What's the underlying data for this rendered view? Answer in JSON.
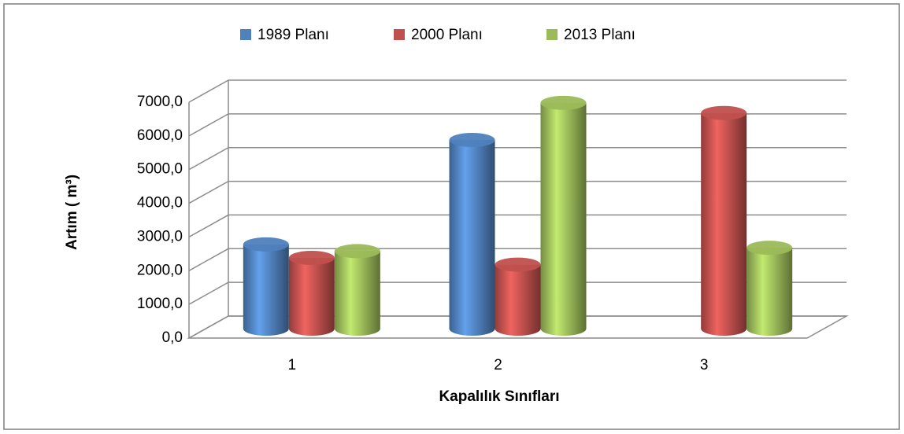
{
  "chart_data": {
    "type": "bar3d",
    "x_label": "Kapalılık Sınıfları",
    "y_label": "Artım ( m³)",
    "categories": [
      "1",
      "2",
      "3"
    ],
    "series": [
      {
        "name": "1989 Planı",
        "color": "#4f81bd",
        "values": [
          2500,
          5600,
          null
        ]
      },
      {
        "name": "2000 Planı",
        "color": "#c0504d",
        "values": [
          2100,
          1900,
          6400
        ]
      },
      {
        "name": "2013  Planı",
        "color": "#9bbb59",
        "values": [
          2300,
          6700,
          2400
        ]
      }
    ],
    "ylim": [
      0,
      7000
    ],
    "yticks": [
      {
        "value": 0,
        "label": "0,0"
      },
      {
        "value": 1000,
        "label": "1000,0"
      },
      {
        "value": 2000,
        "label": "2000,0"
      },
      {
        "value": 3000,
        "label": "3000,0"
      },
      {
        "value": 4000,
        "label": "4000,0"
      },
      {
        "value": 5000,
        "label": "5000,0"
      },
      {
        "value": 6000,
        "label": "6000,0"
      },
      {
        "value": 7000,
        "label": "7000,0"
      }
    ],
    "grid": true,
    "legend": "top"
  }
}
